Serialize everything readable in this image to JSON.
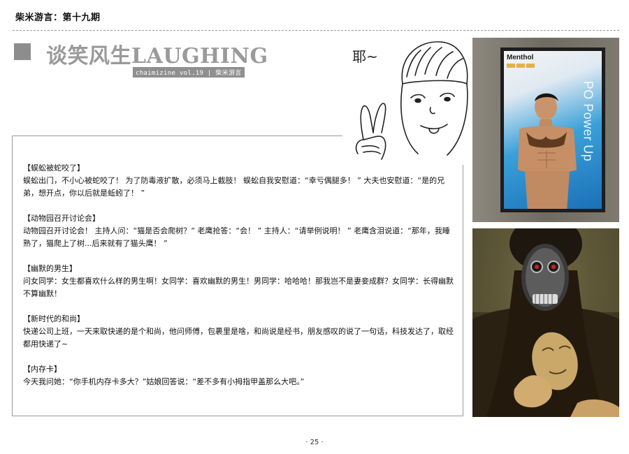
{
  "header": {
    "title": "柴米游言：第十九期"
  },
  "section": {
    "heading": "谈笑风生LAUGHING",
    "subheading": "chaimizine vol.19 | 柴米游言"
  },
  "cartoon": {
    "speech": "耶~"
  },
  "jokes": [
    {
      "title": "【蜈蚣被蛇咬了】",
      "body": "蜈蚣出门，不小心被蛇咬了！ 为了防毒液扩散，必须马上截肢！ 蜈蚣自我安慰道：“幸亏偶腿多！ ” 大夫也安慰道：“是的兄弟，想开点，你以后就是蚯蚓了！ ”"
    },
    {
      "title": "【动物园召开讨论会】",
      "body": "动物园召开讨论会！ 主持人问：“猫是否会爬树？” 老鹰抢答：“会！ ” 主持人：“请举例说明！ ” 老鹰含泪说道：“那年，我睡熟了，猫爬上了树...后来就有了猫头鹰！ ”"
    },
    {
      "title": "【幽默的男生】",
      "body": "问女同学：女生都喜欢什么样的男生啊！女同学：喜欢幽默的男生！男同学：哈哈哈！那我岂不是妻妾成群？女同学：长得幽默不算幽默！"
    },
    {
      "title": "【新时代的和尚】",
      "body": "快递公司上班，一天来取快递的是个和尚，他问师傅，包裹里是啥，和尚说是经书，朋友感叹的说了一句话，科技发达了，取经都用快递了~"
    },
    {
      "title": "【内存卡】",
      "body": "今天我问她：“你手机内存卡多大？”姑娘回答说：“差不多有小拇指甲盖那么大吧。”"
    }
  ],
  "poster": {
    "brand": "Menthol",
    "slogan": "PO Power Up"
  },
  "footer": {
    "page_number": "· 25 ·"
  }
}
